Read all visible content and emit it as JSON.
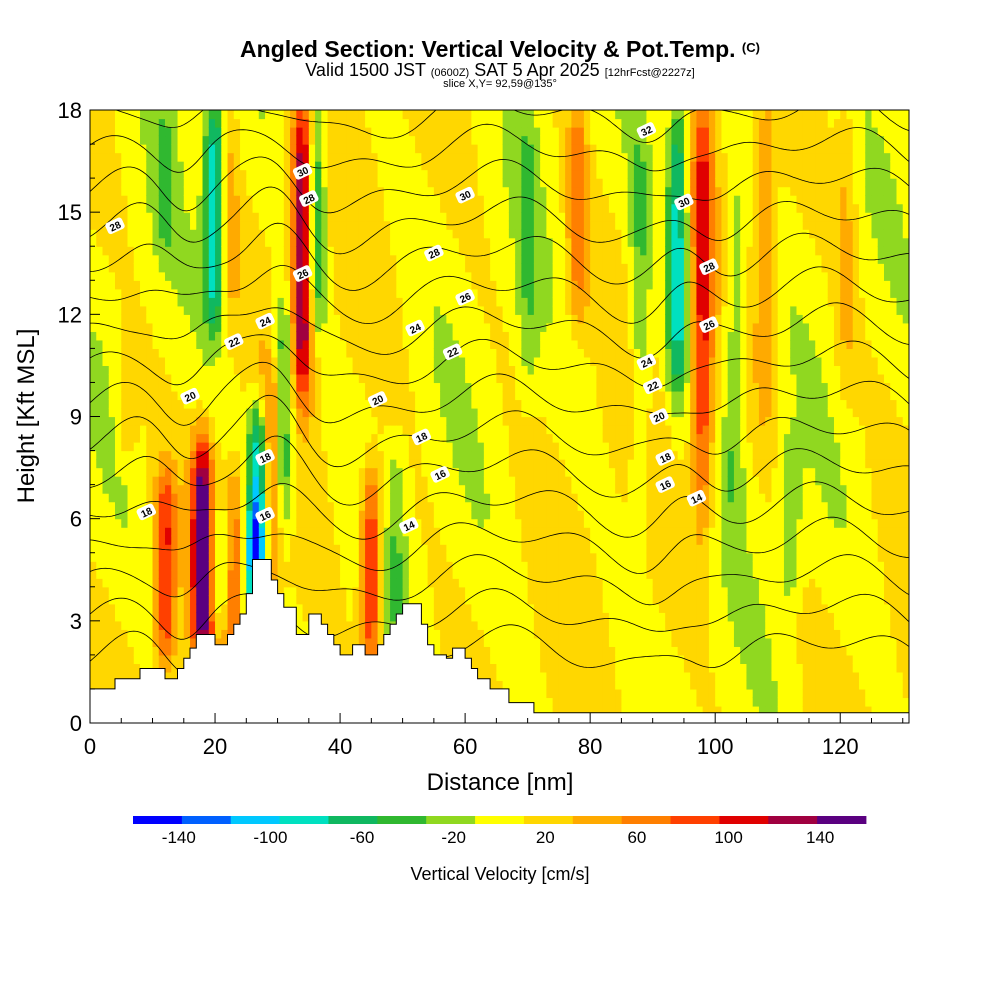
{
  "title": {
    "main": "Angled Section: Vertical Velocity & Pot.Temp.",
    "main_tag": "(C)",
    "valid_prefix": "Valid 1500 JST",
    "valid_zulu": "(0600Z)",
    "valid_date": "SAT 5 Apr 2025",
    "valid_fcst": "[12hrFcst@2227z]",
    "slice": "slice X,Y= 92,59@135°"
  },
  "chart_data": {
    "type": "heatmap",
    "title": "Angled Section: Vertical Velocity & Pot.Temp. (C)",
    "xlabel": "Distance [nm]",
    "ylabel": "Height [Kft MSL]",
    "xlim": [
      0,
      131
    ],
    "ylim": [
      0,
      18
    ],
    "x_ticks": [
      0,
      20,
      40,
      60,
      80,
      100,
      120
    ],
    "y_ticks": [
      0,
      3,
      6,
      9,
      12,
      15,
      18
    ],
    "colorbar": {
      "title": "Vertical Velocity [cm/s]",
      "tick_labels": [
        "-140",
        "-100",
        "-60",
        "-20",
        "20",
        "60",
        "100",
        "140"
      ],
      "tick_values": [
        -140,
        -100,
        -60,
        -20,
        20,
        60,
        100,
        140
      ],
      "range": [
        -160,
        160
      ],
      "colors": [
        "#0000ff",
        "#0060ff",
        "#00c8ff",
        "#00e0c0",
        "#10b860",
        "#30b830",
        "#90d820",
        "#ffff00",
        "#ffd700",
        "#ffaa00",
        "#ff7f00",
        "#ff4000",
        "#e00000",
        "#a00040",
        "#5a0080"
      ]
    },
    "velocity_features": [
      {
        "x": 6,
        "zlo": 8,
        "zhi": 11,
        "w": 30
      },
      {
        "x": 12,
        "zlo": 2,
        "zhi": 7,
        "w": 90
      },
      {
        "x": 18,
        "zlo": 2,
        "zhi": 8,
        "w": 150
      },
      {
        "x": 21,
        "zlo": 3,
        "zhi": 6,
        "w": -60
      },
      {
        "x": 23,
        "zlo": 2,
        "zhi": 7,
        "w": 70
      },
      {
        "x": 26,
        "zlo": 2,
        "zhi": 6,
        "w": -70
      },
      {
        "x": 27,
        "zlo": 4,
        "zhi": 9,
        "w": -120
      },
      {
        "x": 29,
        "zlo": 4,
        "zhi": 10,
        "w": 70
      },
      {
        "x": 31,
        "zlo": 6,
        "zhi": 12,
        "w": -80
      },
      {
        "x": 34,
        "zlo": 10,
        "zhi": 18,
        "w": 150
      },
      {
        "x": 36,
        "zlo": 12,
        "zhi": 18,
        "w": -80
      },
      {
        "x": 20,
        "zlo": 12,
        "zhi": 18,
        "w": -110
      },
      {
        "x": 22,
        "zlo": 12,
        "zhi": 18,
        "w": 40
      },
      {
        "x": 12,
        "zlo": 14,
        "zhi": 18,
        "w": -30
      },
      {
        "x": 45,
        "zlo": 2,
        "zhi": 7,
        "w": 100
      },
      {
        "x": 49,
        "zlo": 3,
        "zhi": 8,
        "w": -30
      },
      {
        "x": 70,
        "zlo": 10,
        "zhi": 18,
        "w": -30
      },
      {
        "x": 78,
        "zlo": 12,
        "zhi": 18,
        "w": 60
      },
      {
        "x": 88,
        "zlo": 6,
        "zhi": 18,
        "w": -40
      },
      {
        "x": 94,
        "zlo": 10,
        "zhi": 18,
        "w": -100
      },
      {
        "x": 98,
        "zlo": 6,
        "zhi": 18,
        "w": 90
      },
      {
        "x": 103,
        "zlo": 6,
        "zhi": 16,
        "w": -40
      },
      {
        "x": 108,
        "zlo": 9,
        "zhi": 18,
        "w": 40
      },
      {
        "x": 112,
        "zlo": 4,
        "zhi": 8,
        "w": -40
      },
      {
        "x": 121,
        "zlo": 10,
        "zhi": 18,
        "w": 30
      }
    ],
    "theta_contour_labels": [
      {
        "text": "30",
        "x": 34,
        "z": 16.2
      },
      {
        "text": "28",
        "x": 35,
        "z": 15.4
      },
      {
        "text": "26",
        "x": 34,
        "z": 13.2
      },
      {
        "text": "24",
        "x": 28,
        "z": 11.8
      },
      {
        "text": "22",
        "x": 23,
        "z": 11.2
      },
      {
        "text": "20",
        "x": 16,
        "z": 9.6
      },
      {
        "text": "18",
        "x": 9,
        "z": 6.2
      },
      {
        "text": "18",
        "x": 28,
        "z": 7.8
      },
      {
        "text": "16",
        "x": 28,
        "z": 6.1
      },
      {
        "text": "28",
        "x": 4,
        "z": 14.6
      },
      {
        "text": "32",
        "x": 89,
        "z": 17.4
      },
      {
        "text": "30",
        "x": 60,
        "z": 15.5
      },
      {
        "text": "30",
        "x": 95,
        "z": 15.3
      },
      {
        "text": "28",
        "x": 55,
        "z": 13.8
      },
      {
        "text": "26",
        "x": 60,
        "z": 12.5
      },
      {
        "text": "28",
        "x": 99,
        "z": 13.4
      },
      {
        "text": "26",
        "x": 99,
        "z": 11.7
      },
      {
        "text": "24",
        "x": 52,
        "z": 11.6
      },
      {
        "text": "22",
        "x": 58,
        "z": 10.9
      },
      {
        "text": "24",
        "x": 89,
        "z": 10.6
      },
      {
        "text": "22",
        "x": 90,
        "z": 9.9
      },
      {
        "text": "20",
        "x": 46,
        "z": 9.5
      },
      {
        "text": "20",
        "x": 91,
        "z": 9.0
      },
      {
        "text": "18",
        "x": 53,
        "z": 8.4
      },
      {
        "text": "18",
        "x": 92,
        "z": 7.8
      },
      {
        "text": "16",
        "x": 56,
        "z": 7.3
      },
      {
        "text": "16",
        "x": 92,
        "z": 7.0
      },
      {
        "text": "14",
        "x": 51,
        "z": 5.8
      },
      {
        "text": "14",
        "x": 97,
        "z": 6.6
      }
    ],
    "terrain": [
      [
        0,
        1.0
      ],
      [
        4,
        1.0
      ],
      [
        4,
        1.3
      ],
      [
        8,
        1.3
      ],
      [
        8,
        1.6
      ],
      [
        12,
        1.6
      ],
      [
        12,
        1.3
      ],
      [
        14,
        1.3
      ],
      [
        14,
        1.6
      ],
      [
        15,
        1.6
      ],
      [
        15,
        1.9
      ],
      [
        16,
        1.9
      ],
      [
        16,
        2.2
      ],
      [
        17,
        2.2
      ],
      [
        17,
        2.6
      ],
      [
        20,
        2.6
      ],
      [
        20,
        2.3
      ],
      [
        22,
        2.3
      ],
      [
        22,
        2.6
      ],
      [
        23,
        2.6
      ],
      [
        23,
        2.9
      ],
      [
        24,
        2.9
      ],
      [
        24,
        3.2
      ],
      [
        25,
        3.2
      ],
      [
        25,
        3.8
      ],
      [
        26,
        3.8
      ],
      [
        26,
        4.8
      ],
      [
        29,
        4.8
      ],
      [
        29,
        4.2
      ],
      [
        30,
        4.2
      ],
      [
        30,
        3.8
      ],
      [
        31,
        3.8
      ],
      [
        31,
        3.4
      ],
      [
        33,
        3.4
      ],
      [
        33,
        2.6
      ],
      [
        35,
        2.6
      ],
      [
        35,
        3.2
      ],
      [
        37,
        3.2
      ],
      [
        37,
        2.9
      ],
      [
        38,
        2.9
      ],
      [
        38,
        2.6
      ],
      [
        39,
        2.6
      ],
      [
        39,
        2.3
      ],
      [
        40,
        2.3
      ],
      [
        40,
        2.0
      ],
      [
        42,
        2.0
      ],
      [
        42,
        2.3
      ],
      [
        44,
        2.3
      ],
      [
        44,
        2.0
      ],
      [
        46,
        2.0
      ],
      [
        46,
        2.3
      ],
      [
        47,
        2.3
      ],
      [
        47,
        2.6
      ],
      [
        48,
        2.6
      ],
      [
        48,
        2.9
      ],
      [
        49,
        2.9
      ],
      [
        49,
        3.2
      ],
      [
        50,
        3.2
      ],
      [
        50,
        3.5
      ],
      [
        53,
        3.5
      ],
      [
        53,
        2.9
      ],
      [
        54,
        2.9
      ],
      [
        54,
        2.3
      ],
      [
        55,
        2.3
      ],
      [
        55,
        2.0
      ],
      [
        57,
        2.0
      ],
      [
        57,
        1.9
      ],
      [
        58,
        1.9
      ],
      [
        58,
        2.2
      ],
      [
        60,
        2.2
      ],
      [
        60,
        1.9
      ],
      [
        61,
        1.9
      ],
      [
        61,
        1.6
      ],
      [
        62,
        1.6
      ],
      [
        62,
        1.3
      ],
      [
        64,
        1.3
      ],
      [
        64,
        1.0
      ],
      [
        67,
        1.0
      ],
      [
        67,
        0.6
      ],
      [
        71,
        0.6
      ],
      [
        71,
        0.3
      ],
      [
        131,
        0.3
      ]
    ]
  }
}
